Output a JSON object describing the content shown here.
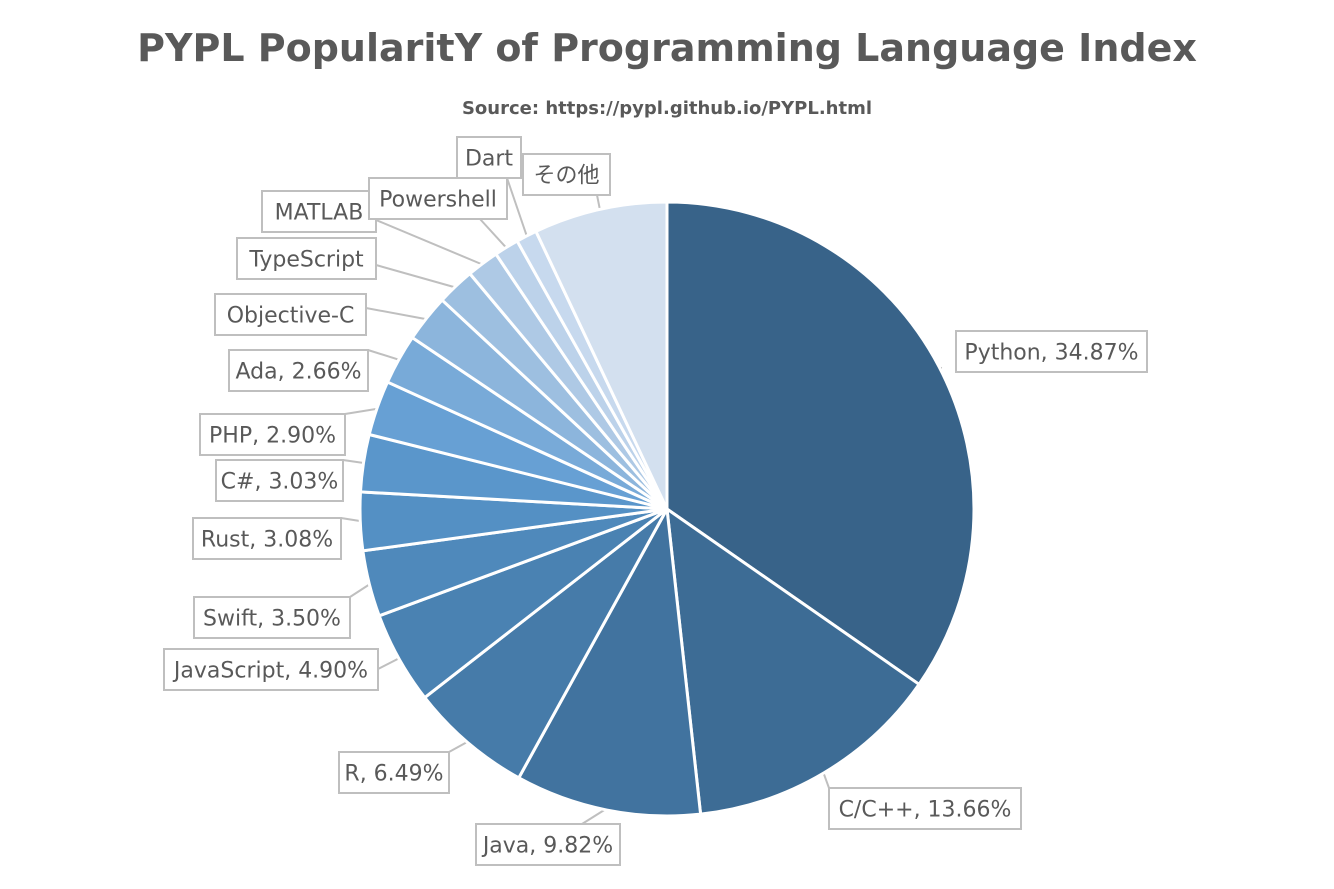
{
  "chart_data": {
    "type": "pie",
    "title": "PYPL PopularitY of Programming Language Index",
    "subtitle": "Source: https://pypl.github.io/PYPL.html",
    "slices": [
      {
        "name": "Python",
        "value": 34.87,
        "label": "Python, 34.87%",
        "color": "#386389"
      },
      {
        "name": "C/C++",
        "value": 13.66,
        "label": "C/C++, 13.66%",
        "color": "#3d6c95"
      },
      {
        "name": "Java",
        "value": 9.82,
        "label": "Java, 9.82%",
        "color": "#41739f"
      },
      {
        "name": "R",
        "value": 6.49,
        "label": "R, 6.49%",
        "color": "#467ba9"
      },
      {
        "name": "JavaScript",
        "value": 4.9,
        "label": "JavaScript, 4.90%",
        "color": "#4a82b2"
      },
      {
        "name": "Swift",
        "value": 3.5,
        "label": "Swift, 3.50%",
        "color": "#4f89bb"
      },
      {
        "name": "Rust",
        "value": 3.08,
        "label": "Rust, 3.08%",
        "color": "#5490c4"
      },
      {
        "name": "C#",
        "value": 3.03,
        "label": "C#, 3.03%",
        "color": "#5a96cb"
      },
      {
        "name": "PHP",
        "value": 2.9,
        "label": "PHP, 2.90%",
        "color": "#67a0d4"
      },
      {
        "name": "Ada",
        "value": 2.66,
        "label": "Ada, 2.66%",
        "color": "#78aad8"
      },
      {
        "name": "Objective-C",
        "value": 2.5,
        "label": "Objective-C",
        "color": "#8cb5dc"
      },
      {
        "name": "TypeScript",
        "value": 2.0,
        "label": "TypeScript",
        "color": "#9dbfe0"
      },
      {
        "name": "MATLAB",
        "value": 1.7,
        "label": "MATLAB",
        "color": "#aec9e5"
      },
      {
        "name": "Powershell",
        "value": 1.3,
        "label": "Powershell",
        "color": "#bcd2ea"
      },
      {
        "name": "Dart",
        "value": 1.1,
        "label": "Dart",
        "color": "#c7d9ee"
      },
      {
        "name": "その他",
        "value": 7.06,
        "label": "その他",
        "color": "#d3e0ef"
      }
    ]
  }
}
